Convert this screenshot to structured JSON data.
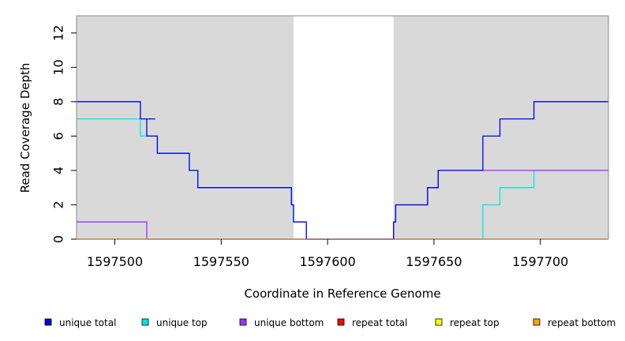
{
  "chart_data": {
    "type": "line",
    "xlabel": "Coordinate in Reference Genome",
    "ylabel": "Read Coverage Depth",
    "xlim": [
      1597482,
      1597732
    ],
    "ylim": [
      0,
      13
    ],
    "x_ticks": [
      1597500,
      1597550,
      1597600,
      1597650,
      1597700
    ],
    "x_tick_labels": [
      "1597500",
      "1597550",
      "1597600",
      "1597650",
      "1597700"
    ],
    "y_ticks": [
      0,
      2,
      4,
      6,
      8,
      10,
      12
    ],
    "y_tick_labels": [
      "0",
      "2",
      "4",
      "6",
      "8",
      "10",
      "12"
    ],
    "shaded_regions": [
      {
        "x_start": 1597482,
        "x_end": 1597584,
        "color": "#d9d9d9"
      },
      {
        "x_start": 1597631,
        "x_end": 1597732,
        "color": "#d9d9d9"
      }
    ],
    "series": [
      {
        "name": "unique top",
        "color": "#00e5e5",
        "step": true,
        "points": [
          [
            1597482,
            7
          ],
          [
            1597512,
            7
          ],
          [
            1597512,
            6
          ],
          [
            1597515,
            6
          ],
          [
            1597515,
            6
          ],
          [
            1597520,
            6
          ],
          [
            1597520,
            5
          ],
          [
            1597535,
            5
          ],
          [
            1597535,
            4
          ],
          [
            1597539,
            4
          ],
          [
            1597539,
            3
          ],
          [
            1597583,
            3
          ],
          [
            1597583,
            2
          ],
          [
            1597584,
            2
          ],
          [
            1597584,
            1
          ],
          [
            1597590,
            1
          ],
          [
            1597590,
            0
          ],
          [
            1597673,
            0
          ],
          [
            1597673,
            2
          ],
          [
            1597681,
            2
          ],
          [
            1597681,
            3
          ],
          [
            1597697,
            3
          ],
          [
            1597697,
            4
          ],
          [
            1597732,
            4
          ]
        ]
      },
      {
        "name": "unique bottom",
        "color": "#9b30ff",
        "step": true,
        "points": [
          [
            1597482,
            1
          ],
          [
            1597515,
            1
          ],
          [
            1597515,
            0
          ],
          [
            1597631,
            0
          ],
          [
            1597631,
            1
          ],
          [
            1597632,
            1
          ],
          [
            1597632,
            2
          ],
          [
            1597647,
            2
          ],
          [
            1597647,
            3
          ],
          [
            1597652,
            3
          ],
          [
            1597652,
            4
          ],
          [
            1597732,
            4
          ]
        ]
      },
      {
        "name": "repeat total",
        "color": "#ff0000",
        "step": true,
        "points": [
          [
            1597482,
            0
          ],
          [
            1597732,
            0
          ]
        ]
      },
      {
        "name": "repeat top",
        "color": "#ffff00",
        "step": true,
        "points": [
          [
            1597482,
            0
          ],
          [
            1597732,
            0
          ]
        ]
      },
      {
        "name": "repeat bottom",
        "color": "#ffa500",
        "step": true,
        "points": [
          [
            1597482,
            0
          ],
          [
            1597732,
            0
          ]
        ]
      },
      {
        "name": "unique total",
        "color": "#0000ee",
        "step": true,
        "points": [
          [
            1597482,
            8
          ],
          [
            1597512,
            8
          ],
          [
            1597512,
            7
          ],
          [
            1597519,
            7
          ],
          [
            1597515,
            7
          ],
          [
            1597515,
            6
          ],
          [
            1597520,
            6
          ],
          [
            1597520,
            5
          ],
          [
            1597535,
            5
          ],
          [
            1597535,
            4
          ],
          [
            1597539,
            4
          ],
          [
            1597539,
            3
          ],
          [
            1597583,
            3
          ],
          [
            1597583,
            2
          ],
          [
            1597584,
            2
          ],
          [
            1597584,
            1
          ],
          [
            1597590,
            1
          ],
          [
            1597590,
            0
          ],
          [
            1597631,
            0
          ],
          [
            1597631,
            1
          ],
          [
            1597632,
            1
          ],
          [
            1597632,
            2
          ],
          [
            1597647,
            2
          ],
          [
            1597647,
            3
          ],
          [
            1597652,
            3
          ],
          [
            1597652,
            4
          ],
          [
            1597673,
            4
          ],
          [
            1597673,
            6
          ],
          [
            1597681,
            6
          ],
          [
            1597681,
            7
          ],
          [
            1597697,
            7
          ],
          [
            1597697,
            8
          ],
          [
            1597732,
            8
          ]
        ]
      }
    ],
    "legend": {
      "placement": "bottom",
      "entries": [
        {
          "label": "unique total",
          "color": "#0000ee"
        },
        {
          "label": "unique top",
          "color": "#00e5e5"
        },
        {
          "label": "unique bottom",
          "color": "#9b30ff"
        },
        {
          "label": "repeat total",
          "color": "#ff0000"
        },
        {
          "label": "repeat top",
          "color": "#ffff00"
        },
        {
          "label": "repeat bottom",
          "color": "#ffa500"
        }
      ]
    }
  }
}
